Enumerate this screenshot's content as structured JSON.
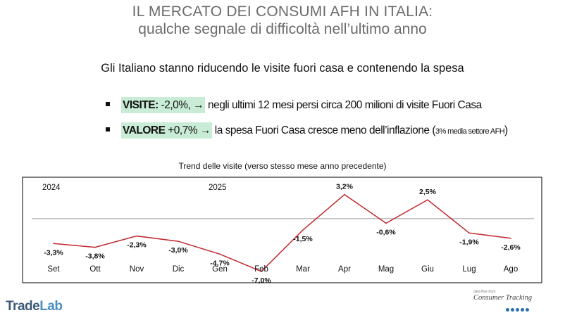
{
  "header": {
    "title_line1": "IL MERCATO DEI CONSUMI AFH IN ITALIA:",
    "title_line2": "qualche segnale di difficoltà nell’ultimo anno",
    "subtitle": "Gli Italiano stanno riducendo le visite fuori casa e contenendo la spesa"
  },
  "bullets": {
    "b1": {
      "highlight_label": "VISITE:",
      "highlight_value": " -2,0%,",
      "text": "negli ultimi 12 mesi persi circa 200 milioni di visite Fuori Casa"
    },
    "b2": {
      "highlight_label": "VALORE",
      "highlight_value": " +0,7%",
      "text": "la spesa Fuori Casa cresce meno dell’inflazione (",
      "small_text": "3% media settore AFH",
      "close": ")"
    },
    "arrow": "→"
  },
  "chart_data": {
    "type": "line",
    "title": "Trend delle visite (verso stesso mese anno precedente)",
    "categories": [
      "Set",
      "Ott",
      "Nov",
      "Dic",
      "Gen",
      "Feb",
      "Mar",
      "Apr",
      "Mag",
      "Giu",
      "Lug",
      "Ago"
    ],
    "values": [
      -3.3,
      -3.8,
      -2.3,
      -3.0,
      -4.7,
      -7.0,
      -1.5,
      3.2,
      -0.6,
      2.5,
      -1.9,
      -2.6
    ],
    "data_labels": [
      "-3,3%",
      "-3,8%",
      "-2,3%",
      "-3,0%",
      "-4,7%",
      "-7,0%",
      "-1,5%",
      "3,2%",
      "-0,6%",
      "2,5%",
      "-1,9%",
      "-2,6%"
    ],
    "year_labels": [
      {
        "text": "2024",
        "category": "Set"
      },
      {
        "text": "2025",
        "category": "Gen"
      }
    ],
    "ylim": [
      -8.5,
      5.5
    ],
    "line_color": "#c0282d",
    "grid": false,
    "legend": "none"
  },
  "branding": {
    "left_logo_part1": "Trade",
    "left_logo_part2": "Lab",
    "right_logo_tiny": "data flow from",
    "right_logo_name": "Consumer Tracking"
  }
}
